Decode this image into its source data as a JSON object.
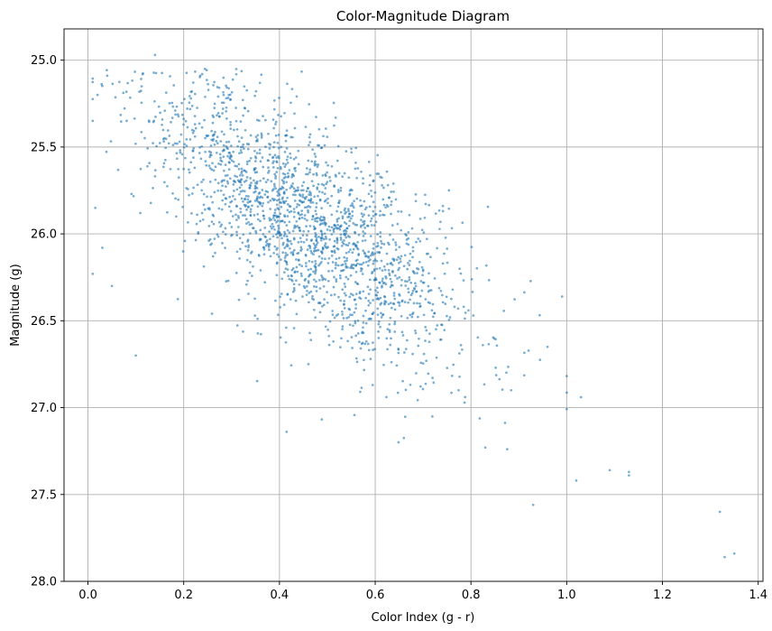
{
  "chart_data": {
    "type": "scatter",
    "title": "Color-Magnitude Diagram",
    "xlabel": "Color Index (g - r)",
    "ylabel": "Magnitude (g)",
    "xlim": [
      -0.05,
      1.41
    ],
    "ylim": [
      24.82,
      28.0
    ],
    "y_inverted": true,
    "grid": true,
    "x_ticks": [
      0.0,
      0.2,
      0.4,
      0.6,
      0.8,
      1.0,
      1.2,
      1.4
    ],
    "x_tick_labels": [
      "0.0",
      "0.2",
      "0.4",
      "0.6",
      "0.8",
      "1.0",
      "1.2",
      "1.4"
    ],
    "y_ticks": [
      25.0,
      25.5,
      26.0,
      26.5,
      27.0,
      27.5,
      28.0
    ],
    "y_tick_labels": [
      "25.0",
      "25.5",
      "26.0",
      "26.5",
      "27.0",
      "27.5",
      "28.0"
    ],
    "marker_color": "#1f77b4",
    "marker_alpha": 0.6,
    "n_points": 2000,
    "distribution_note": "dense band from (0.1-0.3, 25.0-25.6) through (0.4-0.6, 26.0-26.4) to (0.8-1.0, 26.7-27.3)",
    "sample_points": [
      {
        "x": 0.14,
        "y": 24.97
      },
      {
        "x": 0.02,
        "y": 25.2
      },
      {
        "x": 0.01,
        "y": 26.23
      },
      {
        "x": 0.05,
        "y": 26.3
      },
      {
        "x": 0.03,
        "y": 26.08
      },
      {
        "x": 0.1,
        "y": 26.7
      },
      {
        "x": 0.83,
        "y": 27.23
      },
      {
        "x": 0.93,
        "y": 27.56
      },
      {
        "x": 1.02,
        "y": 27.42
      },
      {
        "x": 1.09,
        "y": 27.36
      },
      {
        "x": 1.13,
        "y": 27.37
      },
      {
        "x": 1.13,
        "y": 27.39
      },
      {
        "x": 1.03,
        "y": 26.94
      },
      {
        "x": 0.96,
        "y": 26.65
      },
      {
        "x": 1.32,
        "y": 27.6
      },
      {
        "x": 1.33,
        "y": 27.86
      },
      {
        "x": 1.35,
        "y": 27.84
      }
    ]
  }
}
